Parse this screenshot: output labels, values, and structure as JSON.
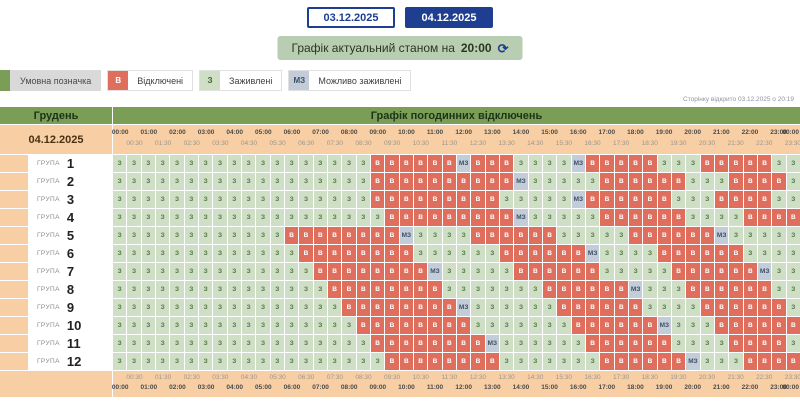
{
  "page": {
    "opened_note": "Сторінку відкрито 03.12.2025 о 20:19"
  },
  "date_tabs": [
    {
      "label": "03.12.2025",
      "active": false
    },
    {
      "label": "04.12.2025",
      "active": true
    }
  ],
  "status_banner": {
    "text_prefix": "Графік актуальний станом на",
    "time": "20:00",
    "refresh_icon": "⟳"
  },
  "legend": {
    "title": "Умовна позначка",
    "items": [
      {
        "code": "В",
        "label": "Відключені",
        "color": "#df6e5d"
      },
      {
        "code": "З",
        "label": "Заживлені",
        "color": "#cfdfc5"
      },
      {
        "code": "МЗ",
        "label": "Можливо заживлені",
        "color": "#c3cdd9"
      }
    ]
  },
  "cell_codes": {
    "З": "З",
    "В": "В",
    "М": "МЗ"
  },
  "colors": {
    "accent_navy": "#1d3e91",
    "header_green": "#7b9e57",
    "band_peach": "#f8cfa5",
    "cell_on": "#cfdfc5",
    "cell_off": "#df6e5d",
    "cell_maybe": "#c3cdd9",
    "banner_green": "#b9cdb2"
  },
  "table": {
    "month_label": "Грудень",
    "title": "Графік погодинних відключень",
    "date_label": "04.12.2025",
    "hour_labels": [
      "00:00",
      "01:00",
      "02:00",
      "03:00",
      "04:00",
      "05:00",
      "06:00",
      "07:00",
      "08:00",
      "09:00",
      "10:00",
      "11:00",
      "12:00",
      "13:00",
      "14:00",
      "15:00",
      "16:00",
      "17:00",
      "18:00",
      "19:00",
      "20:00",
      "21:00",
      "22:00",
      "23:00",
      "00:00"
    ],
    "half_labels": [
      "00:30",
      "01:30",
      "02:30",
      "03:30",
      "04:30",
      "05:30",
      "06:30",
      "07:30",
      "08:30",
      "09:30",
      "10:30",
      "11:30",
      "12:30",
      "13:30",
      "14:30",
      "15:30",
      "16:30",
      "17:30",
      "18:30",
      "19:30",
      "20:30",
      "21:30",
      "22:30",
      "23:30"
    ],
    "groups": [
      {
        "label": "ГРУПА",
        "number": "1",
        "cells": "ЗЗЗЗЗЗЗЗЗЗЗЗЗЗЗЗЗЗВВВВВВМВВВЗЗЗЗМВВВВВЗЗЗВВВВВЗЗ"
      },
      {
        "label": "ГРУПА",
        "number": "2",
        "cells": "ЗЗЗЗЗЗЗЗЗЗЗЗЗЗЗЗЗЗВВВВВВВВВВМЗЗЗЗЗВВВВВВЗЗЗВВВВЗ"
      },
      {
        "label": "ГРУПА",
        "number": "3",
        "cells": "ЗЗЗЗЗЗЗЗЗЗЗЗЗЗЗЗЗЗВВВВВВВВВЗЗЗЗЗМВВВВВВЗЗЗВВВВЗЗ"
      },
      {
        "label": "ГРУПА",
        "number": "4",
        "cells": "ЗЗЗЗЗЗЗЗЗЗЗЗЗЗЗЗЗЗЗВВВВВВВВВМЗЗЗЗЗВВВВВВЗЗЗЗВВВВ"
      },
      {
        "label": "ГРУПА",
        "number": "5",
        "cells": "ЗЗЗЗЗЗЗЗЗЗЗЗВВВВВВВВМЗЗЗЗВВВВВВЗЗЗЗЗВВВВВВМЗЗЗЗЗ"
      },
      {
        "label": "ГРУПА",
        "number": "6",
        "cells": "ЗЗЗЗЗЗЗЗЗЗЗЗЗВВВВВВВВЗЗЗЗЗЗВВВВВВМЗЗЗЗВВВВВВЗЗЗЗ"
      },
      {
        "label": "ГРУПА",
        "number": "7",
        "cells": "ЗЗЗЗЗЗЗЗЗЗЗЗЗЗВВВВВВВВМЗЗЗЗЗВВВВВВЗЗЗЗЗВВВВВВМЗЗ"
      },
      {
        "label": "ГРУПА",
        "number": "8",
        "cells": "ЗЗЗЗЗЗЗЗЗЗЗЗЗЗЗВВВВВВВВЗЗЗЗЗЗЗВВВВВВМЗЗЗВВВВВВЗЗ"
      },
      {
        "label": "ГРУПА",
        "number": "9",
        "cells": "ЗЗЗЗЗЗЗЗЗЗЗЗЗЗЗЗВВВВВВВВМЗЗЗЗЗЗВВВВВВЗЗЗЗВВВВВВЗ"
      },
      {
        "label": "ГРУПА",
        "number": "10",
        "cells": "ЗЗЗЗЗЗЗЗЗЗЗЗЗЗЗЗЗВВВВВВВВЗЗЗЗЗЗЗВВВВВВМЗЗЗВВВВВВ"
      },
      {
        "label": "ГРУПА",
        "number": "11",
        "cells": "ЗЗЗЗЗЗЗЗЗЗЗЗЗЗЗЗЗЗВВВВВВВВМЗЗЗЗЗЗВВВВВВЗЗЗЗВВВВЗ"
      },
      {
        "label": "ГРУПА",
        "number": "12",
        "cells": "ЗЗЗЗЗЗЗЗЗЗЗЗЗЗЗЗЗЗЗВВВВВВВВЗЗЗЗЗЗЗВВВВВВМЗЗЗВВВВ"
      }
    ]
  }
}
